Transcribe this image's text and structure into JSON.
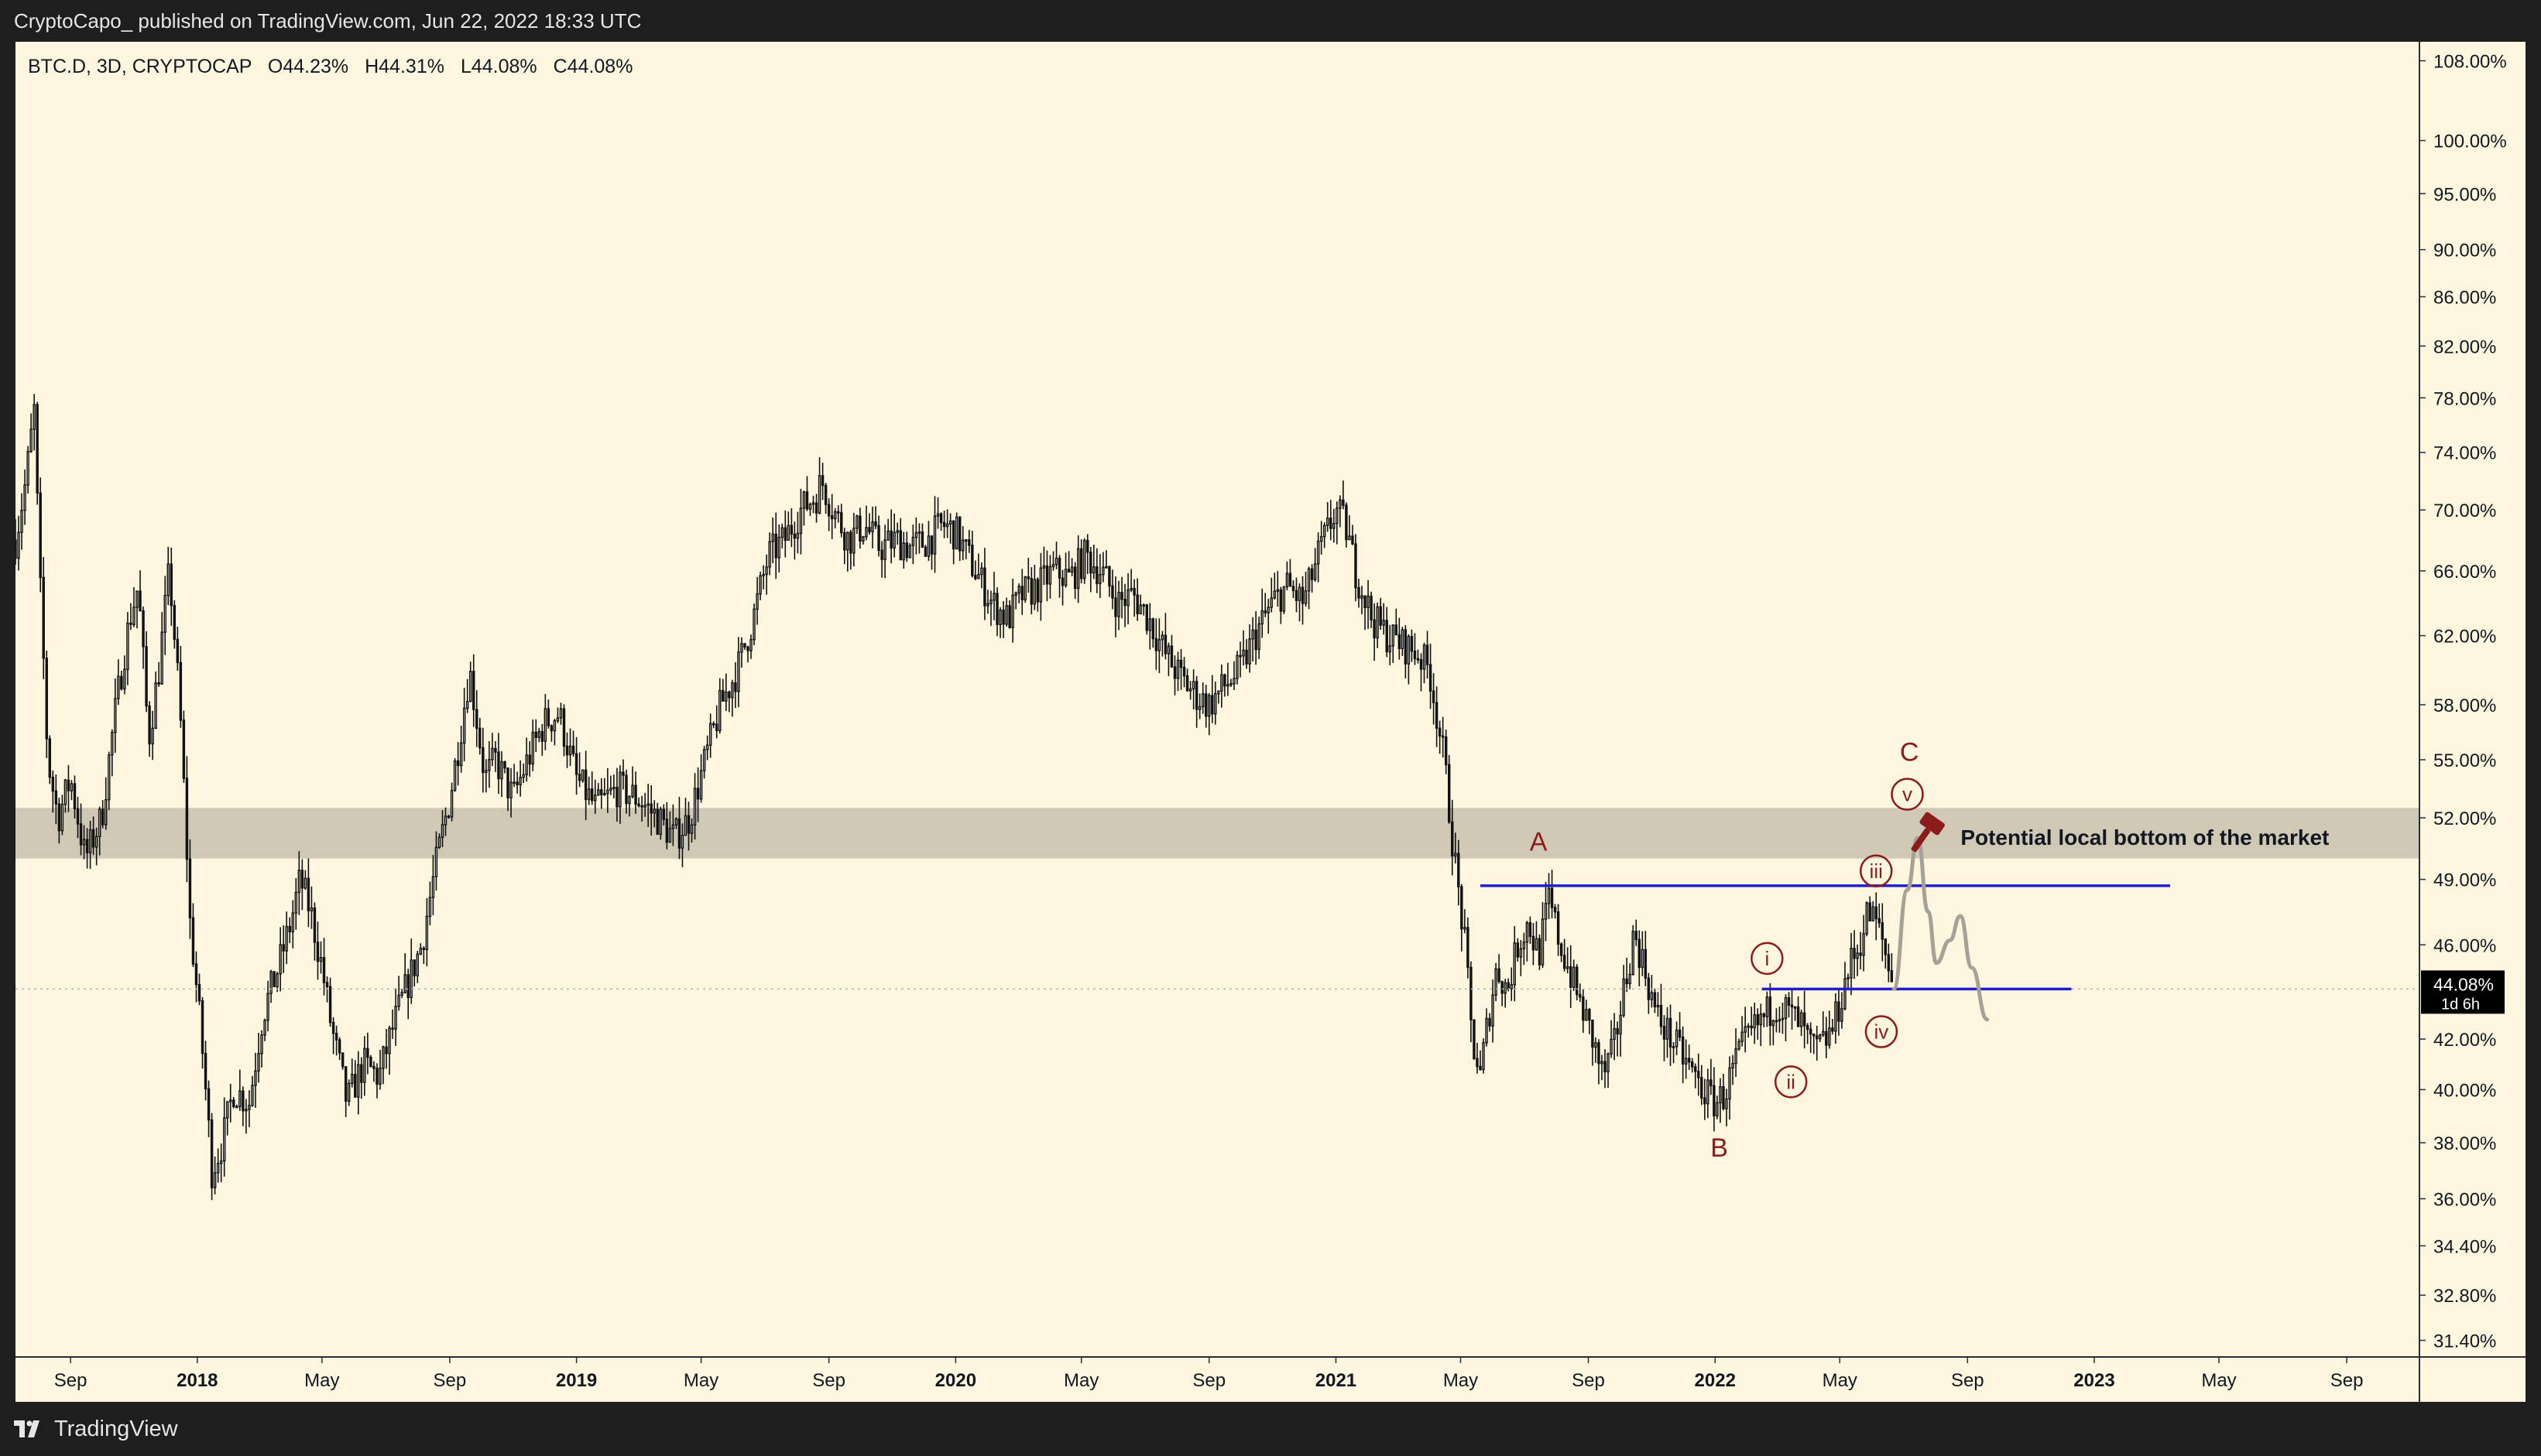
{
  "header": {
    "publisher": "CryptoCapo_ published on TradingView.com, Jun 22, 2022 18:33 UTC"
  },
  "footer": {
    "brand": "TradingView",
    "logo_icon": "tradingview-logo-icon"
  },
  "colors": {
    "background": "#fcf6df",
    "candles": "#111111",
    "zone": "#c9c3b0",
    "levels": "#1f1fd0",
    "wave_labels": "#8b1c1c",
    "projection": "#a6a197"
  },
  "chart_data": {
    "type": "candlestick",
    "symbol_line": {
      "symbol": "BTC.D, 3D, CRYPTOCAP",
      "open": "O44.23%",
      "high": "H44.31%",
      "low": "L44.08%",
      "close": "C44.08%"
    },
    "y_scale": "log",
    "ylim": [
      30.9,
      110
    ],
    "xlim": [
      "2017-07-10",
      "2023-11-10"
    ],
    "y_ticks": [
      "108.00%",
      "100.00%",
      "95.00%",
      "90.00%",
      "86.00%",
      "82.00%",
      "78.00%",
      "74.00%",
      "70.00%",
      "66.00%",
      "62.00%",
      "58.00%",
      "55.00%",
      "52.00%",
      "49.00%",
      "46.00%",
      "42.00%",
      "40.00%",
      "38.00%",
      "36.00%",
      "34.40%",
      "32.80%",
      "31.40%"
    ],
    "x_ticks": [
      {
        "label": "Sep",
        "date": "2017-09-01",
        "bold": false
      },
      {
        "label": "2018",
        "date": "2018-01-01",
        "bold": true
      },
      {
        "label": "May",
        "date": "2018-05-01",
        "bold": false
      },
      {
        "label": "Sep",
        "date": "2018-09-01",
        "bold": false
      },
      {
        "label": "2019",
        "date": "2019-01-01",
        "bold": true
      },
      {
        "label": "May",
        "date": "2019-05-01",
        "bold": false
      },
      {
        "label": "Sep",
        "date": "2019-09-01",
        "bold": false
      },
      {
        "label": "2020",
        "date": "2020-01-01",
        "bold": true
      },
      {
        "label": "May",
        "date": "2020-05-01",
        "bold": false
      },
      {
        "label": "Sep",
        "date": "2020-09-01",
        "bold": false
      },
      {
        "label": "2021",
        "date": "2021-01-01",
        "bold": true
      },
      {
        "label": "May",
        "date": "2021-05-01",
        "bold": false
      },
      {
        "label": "Sep",
        "date": "2021-09-01",
        "bold": false
      },
      {
        "label": "2022",
        "date": "2022-01-01",
        "bold": true
      },
      {
        "label": "May",
        "date": "2022-05-01",
        "bold": false
      },
      {
        "label": "Sep",
        "date": "2022-09-01",
        "bold": false
      },
      {
        "label": "2023",
        "date": "2023-01-01",
        "bold": true
      },
      {
        "label": "May",
        "date": "2023-05-01",
        "bold": false
      },
      {
        "label": "Sep",
        "date": "2023-09-01",
        "bold": false
      }
    ],
    "price_series": [
      [
        "2017-07-10",
        68
      ],
      [
        "2017-07-20",
        72
      ],
      [
        "2017-07-28",
        77
      ],
      [
        "2017-08-02",
        66
      ],
      [
        "2017-08-10",
        55
      ],
      [
        "2017-08-20",
        52
      ],
      [
        "2017-09-01",
        54
      ],
      [
        "2017-09-15",
        50
      ],
      [
        "2017-10-01",
        52
      ],
      [
        "2017-10-15",
        58
      ],
      [
        "2017-10-28",
        63
      ],
      [
        "2017-11-05",
        65
      ],
      [
        "2017-11-15",
        56
      ],
      [
        "2017-11-25",
        60
      ],
      [
        "2017-12-05",
        66
      ],
      [
        "2017-12-15",
        58
      ],
      [
        "2017-12-25",
        47
      ],
      [
        "2018-01-05",
        42
      ],
      [
        "2018-01-15",
        37
      ],
      [
        "2018-01-25",
        38
      ],
      [
        "2018-02-05",
        40
      ],
      [
        "2018-02-20",
        39.5
      ],
      [
        "2018-03-05",
        43
      ],
      [
        "2018-03-20",
        45
      ],
      [
        "2018-04-01",
        47
      ],
      [
        "2018-04-10",
        49
      ],
      [
        "2018-04-20",
        47.5
      ],
      [
        "2018-05-01",
        45
      ],
      [
        "2018-05-10",
        42.5
      ],
      [
        "2018-05-25",
        39.5
      ],
      [
        "2018-06-10",
        41
      ],
      [
        "2018-06-25",
        40.5
      ],
      [
        "2018-07-05",
        42
      ],
      [
        "2018-07-20",
        44
      ],
      [
        "2018-08-05",
        46
      ],
      [
        "2018-08-20",
        50
      ],
      [
        "2018-09-01",
        53
      ],
      [
        "2018-09-10",
        56
      ],
      [
        "2018-09-20",
        60
      ],
      [
        "2018-09-25",
        58
      ],
      [
        "2018-10-05",
        54
      ],
      [
        "2018-10-15",
        55
      ],
      [
        "2018-11-01",
        53
      ],
      [
        "2018-11-15",
        55
      ],
      [
        "2018-12-01",
        57
      ],
      [
        "2018-12-15",
        57.5
      ],
      [
        "2019-01-01",
        54
      ],
      [
        "2019-01-20",
        52.5
      ],
      [
        "2019-02-10",
        53.5
      ],
      [
        "2019-03-01",
        53
      ],
      [
        "2019-03-20",
        52
      ],
      [
        "2019-04-05",
        51
      ],
      [
        "2019-04-20",
        52
      ],
      [
        "2019-05-05",
        55
      ],
      [
        "2019-05-20",
        58
      ],
      [
        "2019-06-05",
        60
      ],
      [
        "2019-06-20",
        63
      ],
      [
        "2019-07-05",
        67
      ],
      [
        "2019-07-20",
        68
      ],
      [
        "2019-08-05",
        70
      ],
      [
        "2019-08-20",
        71
      ],
      [
        "2019-08-25",
        72
      ],
      [
        "2019-09-05",
        70
      ],
      [
        "2019-09-20",
        68
      ],
      [
        "2019-10-05",
        69
      ],
      [
        "2019-10-20",
        67.5
      ],
      [
        "2019-11-05",
        68
      ],
      [
        "2019-11-20",
        67.5
      ],
      [
        "2019-12-05",
        68
      ],
      [
        "2019-12-20",
        69
      ],
      [
        "2020-01-01",
        68.5
      ],
      [
        "2020-01-20",
        66
      ],
      [
        "2020-02-05",
        64
      ],
      [
        "2020-02-20",
        63
      ],
      [
        "2020-03-05",
        64.5
      ],
      [
        "2020-03-20",
        65
      ],
      [
        "2020-04-05",
        66
      ],
      [
        "2020-04-20",
        65.5
      ],
      [
        "2020-05-05",
        67
      ],
      [
        "2020-05-20",
        66
      ],
      [
        "2020-06-05",
        64
      ],
      [
        "2020-06-20",
        64.5
      ],
      [
        "2020-07-05",
        63
      ],
      [
        "2020-07-20",
        61
      ],
      [
        "2020-08-05",
        59.5
      ],
      [
        "2020-08-20",
        58.5
      ],
      [
        "2020-09-01",
        58
      ],
      [
        "2020-09-15",
        59
      ],
      [
        "2020-10-01",
        60
      ],
      [
        "2020-10-15",
        62
      ],
      [
        "2020-11-01",
        64
      ],
      [
        "2020-11-15",
        65
      ],
      [
        "2020-12-01",
        64
      ],
      [
        "2020-12-15",
        67
      ],
      [
        "2021-01-01",
        70
      ],
      [
        "2021-01-10",
        69
      ],
      [
        "2021-01-20",
        66
      ],
      [
        "2021-02-05",
        63
      ],
      [
        "2021-02-20",
        62
      ],
      [
        "2021-03-05",
        61.5
      ],
      [
        "2021-03-20",
        61
      ],
      [
        "2021-04-01",
        60
      ],
      [
        "2021-04-15",
        55
      ],
      [
        "2021-04-25",
        50
      ],
      [
        "2021-05-05",
        46
      ],
      [
        "2021-05-12",
        42
      ],
      [
        "2021-05-20",
        40.5
      ],
      [
        "2021-05-28",
        43
      ],
      [
        "2021-06-05",
        45
      ],
      [
        "2021-06-15",
        44
      ],
      [
        "2021-06-25",
        46
      ],
      [
        "2021-07-05",
        47
      ],
      [
        "2021-07-15",
        45.5
      ],
      [
        "2021-07-25",
        48
      ],
      [
        "2021-08-05",
        46
      ],
      [
        "2021-08-20",
        44
      ],
      [
        "2021-09-05",
        42
      ],
      [
        "2021-09-15",
        40.5
      ],
      [
        "2021-09-25",
        41.5
      ],
      [
        "2021-10-05",
        44
      ],
      [
        "2021-10-15",
        46.5
      ],
      [
        "2021-10-25",
        45
      ],
      [
        "2021-11-05",
        43
      ],
      [
        "2021-11-20",
        42
      ],
      [
        "2021-12-05",
        41
      ],
      [
        "2021-12-20",
        40
      ],
      [
        "2022-01-01",
        39.5
      ],
      [
        "2022-01-10",
        39.8
      ],
      [
        "2022-01-20",
        41
      ],
      [
        "2022-02-01",
        42
      ],
      [
        "2022-02-15",
        42.8
      ],
      [
        "2022-03-01",
        43.5
      ],
      [
        "2022-03-15",
        43
      ],
      [
        "2022-03-25",
        42.5
      ],
      [
        "2022-04-05",
        41.5
      ],
      [
        "2022-04-15",
        41.8
      ],
      [
        "2022-04-25",
        42.5
      ],
      [
        "2022-05-01",
        43.5
      ],
      [
        "2022-05-10",
        45
      ],
      [
        "2022-05-20",
        46
      ],
      [
        "2022-05-28",
        47.5
      ],
      [
        "2022-06-05",
        47
      ],
      [
        "2022-06-12",
        46
      ],
      [
        "2022-06-18",
        44.8
      ],
      [
        "2022-06-22",
        44.08
      ]
    ],
    "support_zone": {
      "low": 50.0,
      "high": 52.5
    },
    "levels": [
      {
        "name": "upper-level",
        "value": 48.7,
        "from": "2021-05-20",
        "to": "2023-03-15"
      },
      {
        "name": "lower-level",
        "value": 44.08,
        "from": "2022-02-15",
        "to": "2022-12-10"
      }
    ],
    "projection_path": [
      [
        "2022-06-22",
        44.08
      ],
      [
        "2022-07-05",
        48.5
      ],
      [
        "2022-07-15",
        51.0
      ],
      [
        "2022-07-25",
        47.5
      ],
      [
        "2022-08-02",
        45.2
      ],
      [
        "2022-08-15",
        46.2
      ],
      [
        "2022-08-25",
        47.3
      ],
      [
        "2022-09-05",
        45.0
      ],
      [
        "2022-09-20",
        42.8
      ]
    ],
    "wave_labels": [
      {
        "label": "A",
        "date": "2021-07-15",
        "value": 50.8,
        "circled": false
      },
      {
        "label": "B",
        "date": "2022-01-05",
        "value": 37.8,
        "circled": false
      },
      {
        "label": "C",
        "date": "2022-07-07",
        "value": 55.4,
        "circled": false
      },
      {
        "label": "i",
        "date": "2022-02-20",
        "value": 45.4,
        "circled": true
      },
      {
        "label": "ii",
        "date": "2022-03-15",
        "value": 40.3,
        "circled": true
      },
      {
        "label": "iii",
        "date": "2022-06-05",
        "value": 49.4,
        "circled": true
      },
      {
        "label": "iv",
        "date": "2022-06-10",
        "value": 42.3,
        "circled": true
      },
      {
        "label": "v",
        "date": "2022-07-05",
        "value": 53.2,
        "circled": true
      }
    ],
    "annotation": {
      "text": "Potential local bottom of the market",
      "icon": "gavel-icon",
      "date": "2022-07-25",
      "value": 51.0
    },
    "last_price": {
      "value": 44.08,
      "label": "44.08%",
      "countdown": "1d 6h"
    }
  }
}
